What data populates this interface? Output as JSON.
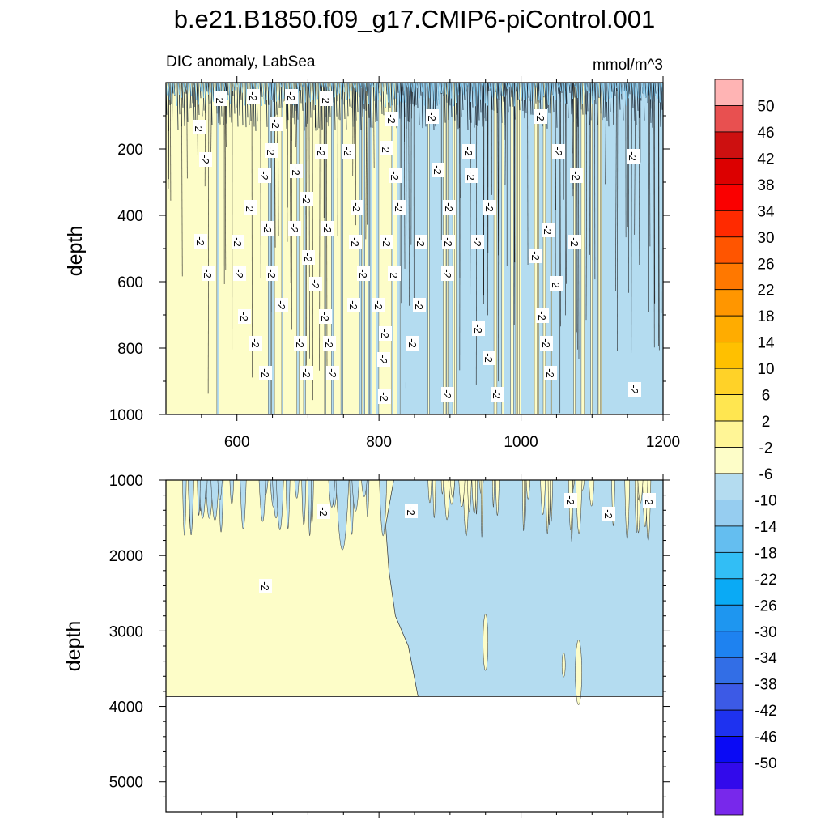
{
  "title": "b.e21.B1850.f09_g17.CMIP6-piControl.001",
  "chart_data": {
    "type": "contour",
    "subtitle_left": "DIC anomaly, LabSea",
    "subtitle_right": "mmol/m^3",
    "xlabel": "",
    "xlim": [
      500,
      1200
    ],
    "x_ticks": [
      600,
      800,
      1000,
      1200
    ],
    "contour_line_label": "-2",
    "panels": [
      {
        "name": "upper",
        "ylabel": "depth",
        "ylim": [
          0,
          1000
        ],
        "y_ticks": [
          200,
          400,
          600,
          800,
          1000
        ],
        "x_front": 830,
        "fill_left_level": "2",
        "fill_right_level": "-2"
      },
      {
        "name": "lower",
        "ylabel": "depth",
        "ylim": [
          1000,
          5400
        ],
        "y_ticks": [
          1000,
          2000,
          3000,
          4000,
          5000
        ],
        "bottom_depth": 3870,
        "x_front": 855,
        "fill_left_level": "2",
        "fill_right_level": "-2"
      }
    ],
    "colorbar": {
      "labels": [
        "50",
        "46",
        "42",
        "38",
        "34",
        "30",
        "26",
        "22",
        "18",
        "14",
        "10",
        "6",
        "2",
        "-2",
        "-6",
        "-10",
        "-14",
        "-18",
        "-22",
        "-26",
        "-30",
        "-34",
        "-38",
        "-42",
        "-46",
        "-50"
      ],
      "colors": [
        "#ffb4b4",
        "#e85050",
        "#cd1010",
        "#dc0000",
        "#fa0000",
        "#ff2a00",
        "#ff5500",
        "#ff7800",
        "#ff9600",
        "#ffac00",
        "#ffc000",
        "#ffd228",
        "#ffe650",
        "#fff596",
        "#fdfdc8",
        "#b4dcf0",
        "#96cdf0",
        "#64bef0",
        "#32bef5",
        "#0aaaf5",
        "#1e96f0",
        "#1e82f0",
        "#326ee6",
        "#3c5ae6",
        "#1e32f0",
        "#0a0af5",
        "#320aeb",
        "#7828eb"
      ]
    }
  }
}
